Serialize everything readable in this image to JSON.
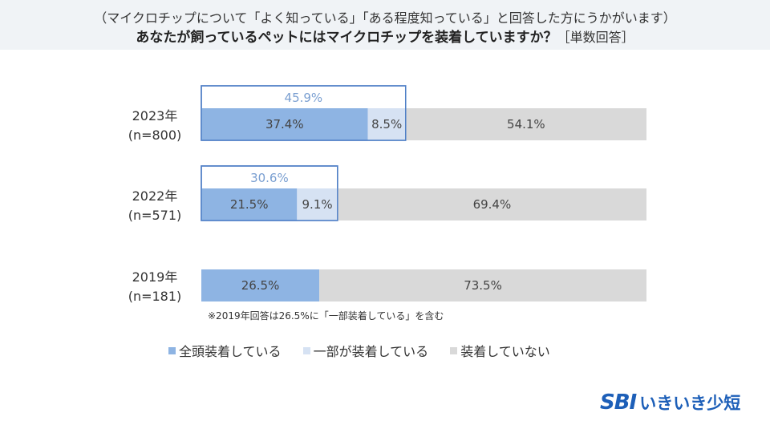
{
  "header": {
    "subtitle": "（マイクロチップについて「よく知っている」「ある程度知っている」と回答した方にうかがいます）",
    "title": "あなたが飼っているペットにはマイクロチップを装着していますか？",
    "answer_type": "［単数回答］"
  },
  "chart_data": {
    "type": "bar",
    "orientation": "horizontal",
    "stacked": true,
    "percent_stacked": true,
    "categories": [
      {
        "year": "2023年",
        "n": "(n=800)"
      },
      {
        "year": "2022年",
        "n": "(n=571)"
      },
      {
        "year": "2019年",
        "n": "(n=181)"
      }
    ],
    "series": [
      {
        "name": "全頭装着している",
        "color": "#8eb4e3",
        "values": [
          37.4,
          21.5,
          26.5
        ],
        "labels": [
          "37.4%",
          "21.5%",
          "26.5%"
        ]
      },
      {
        "name": "一部が装着している",
        "color": "#d6e2f3",
        "values": [
          8.5,
          9.1,
          null
        ],
        "labels": [
          "8.5%",
          "9.1%",
          ""
        ]
      },
      {
        "name": "装着していない",
        "color": "#d9d9d9",
        "values": [
          54.1,
          69.4,
          73.5
        ],
        "labels": [
          "54.1%",
          "69.4%",
          "73.5%"
        ]
      }
    ],
    "highlight_totals": [
      {
        "value": 45.9,
        "label": "45.9%",
        "color": "#4f7fc6"
      },
      {
        "value": 30.6,
        "label": "30.6%",
        "color": "#4f7fc6"
      },
      null
    ],
    "xlim": [
      0,
      100
    ],
    "legend_position": "bottom",
    "grid": false,
    "note": "※2019年回答は26.5%に「一部装着している」を含む"
  },
  "logo": {
    "sbi": "SBI",
    "brand": "いきいき少短",
    "color": "#1d5fb8"
  }
}
